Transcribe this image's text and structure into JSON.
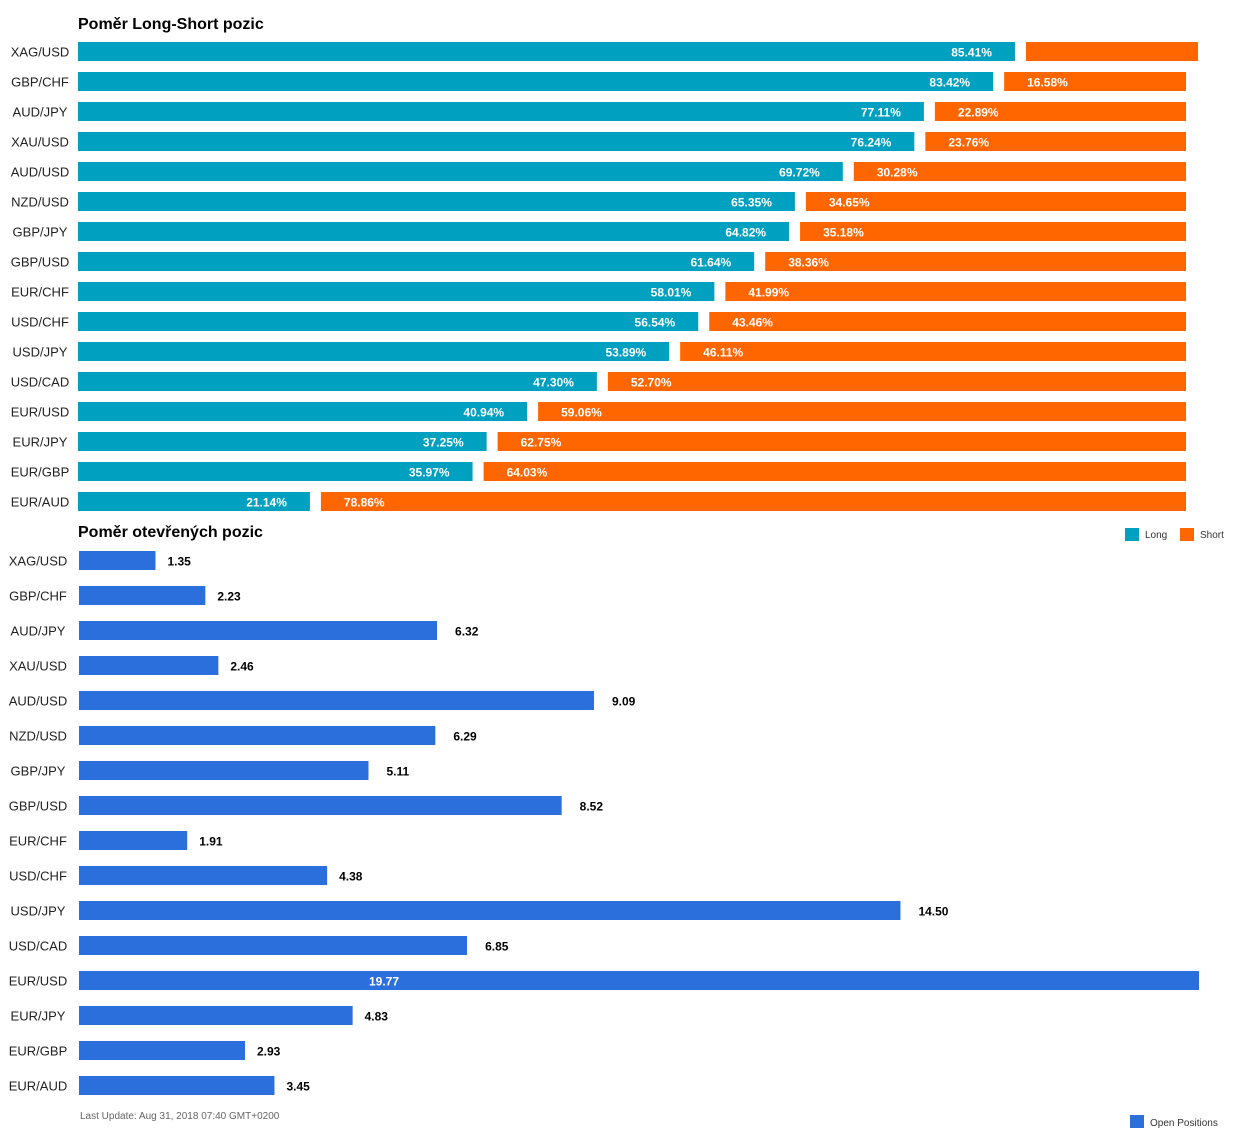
{
  "chart_data": [
    {
      "type": "bar",
      "orientation": "horizontal",
      "stacked": "percent",
      "title": "Poměr Long-Short pozic",
      "categories": [
        "XAG/USD",
        "GBP/CHF",
        "AUD/JPY",
        "XAU/USD",
        "AUD/USD",
        "NZD/USD",
        "GBP/JPY",
        "GBP/USD",
        "EUR/CHF",
        "USD/CHF",
        "USD/JPY",
        "USD/CAD",
        "EUR/USD",
        "EUR/JPY",
        "EUR/GBP",
        "EUR/AUD"
      ],
      "series": [
        {
          "name": "Long",
          "color": "#00a0c0",
          "values": [
            85.41,
            83.42,
            77.11,
            76.24,
            69.72,
            65.35,
            64.82,
            61.64,
            58.01,
            56.54,
            53.89,
            47.3,
            40.94,
            37.25,
            35.97,
            21.14
          ],
          "labels": [
            "85.41%",
            "83.42%",
            "77.11%",
            "76.24%",
            "69.72%",
            "65.35%",
            "64.82%",
            "61.64%",
            "58.01%",
            "56.54%",
            "53.89%",
            "47.30%",
            "40.94%",
            "37.25%",
            "35.97%",
            "21.14%"
          ]
        },
        {
          "name": "Short",
          "color": "#ff6600",
          "values": [
            14.59,
            16.58,
            22.89,
            23.76,
            30.28,
            34.65,
            35.18,
            38.36,
            41.99,
            43.46,
            46.11,
            52.7,
            59.06,
            62.75,
            64.03,
            78.86
          ],
          "labels": [
            "",
            "16.58%",
            "22.89%",
            "23.76%",
            "30.28%",
            "34.65%",
            "35.18%",
            "38.36%",
            "41.99%",
            "43.46%",
            "46.11%",
            "52.70%",
            "59.06%",
            "62.75%",
            "64.03%",
            "78.86%"
          ]
        }
      ],
      "legend": "bottom-right",
      "grid": false
    },
    {
      "type": "bar",
      "orientation": "horizontal",
      "title": "Poměr otevřených pozic",
      "categories": [
        "XAG/USD",
        "GBP/CHF",
        "AUD/JPY",
        "XAU/USD",
        "AUD/USD",
        "NZD/USD",
        "GBP/JPY",
        "GBP/USD",
        "EUR/CHF",
        "USD/CHF",
        "USD/JPY",
        "USD/CAD",
        "EUR/USD",
        "EUR/JPY",
        "EUR/GBP",
        "EUR/AUD"
      ],
      "series": [
        {
          "name": "Open Positions",
          "color": "#2a6fdb",
          "values": [
            1.35,
            2.23,
            6.32,
            2.46,
            9.09,
            6.29,
            5.11,
            8.52,
            1.91,
            4.38,
            14.5,
            6.85,
            19.77,
            4.83,
            2.93,
            3.45
          ],
          "labels": [
            "1.35",
            "2.23",
            "6.32",
            "2.46",
            "9.09",
            "6.29",
            "5.11",
            "8.52",
            "1.91",
            "4.38",
            "14.50",
            "6.85",
            "19.77",
            "4.83",
            "2.93",
            "3.45"
          ]
        }
      ],
      "legend": "bottom-right",
      "grid": false
    }
  ],
  "footer": {
    "last_update": "Last Update: Aug 31, 2018 07:40 GMT+0200"
  }
}
